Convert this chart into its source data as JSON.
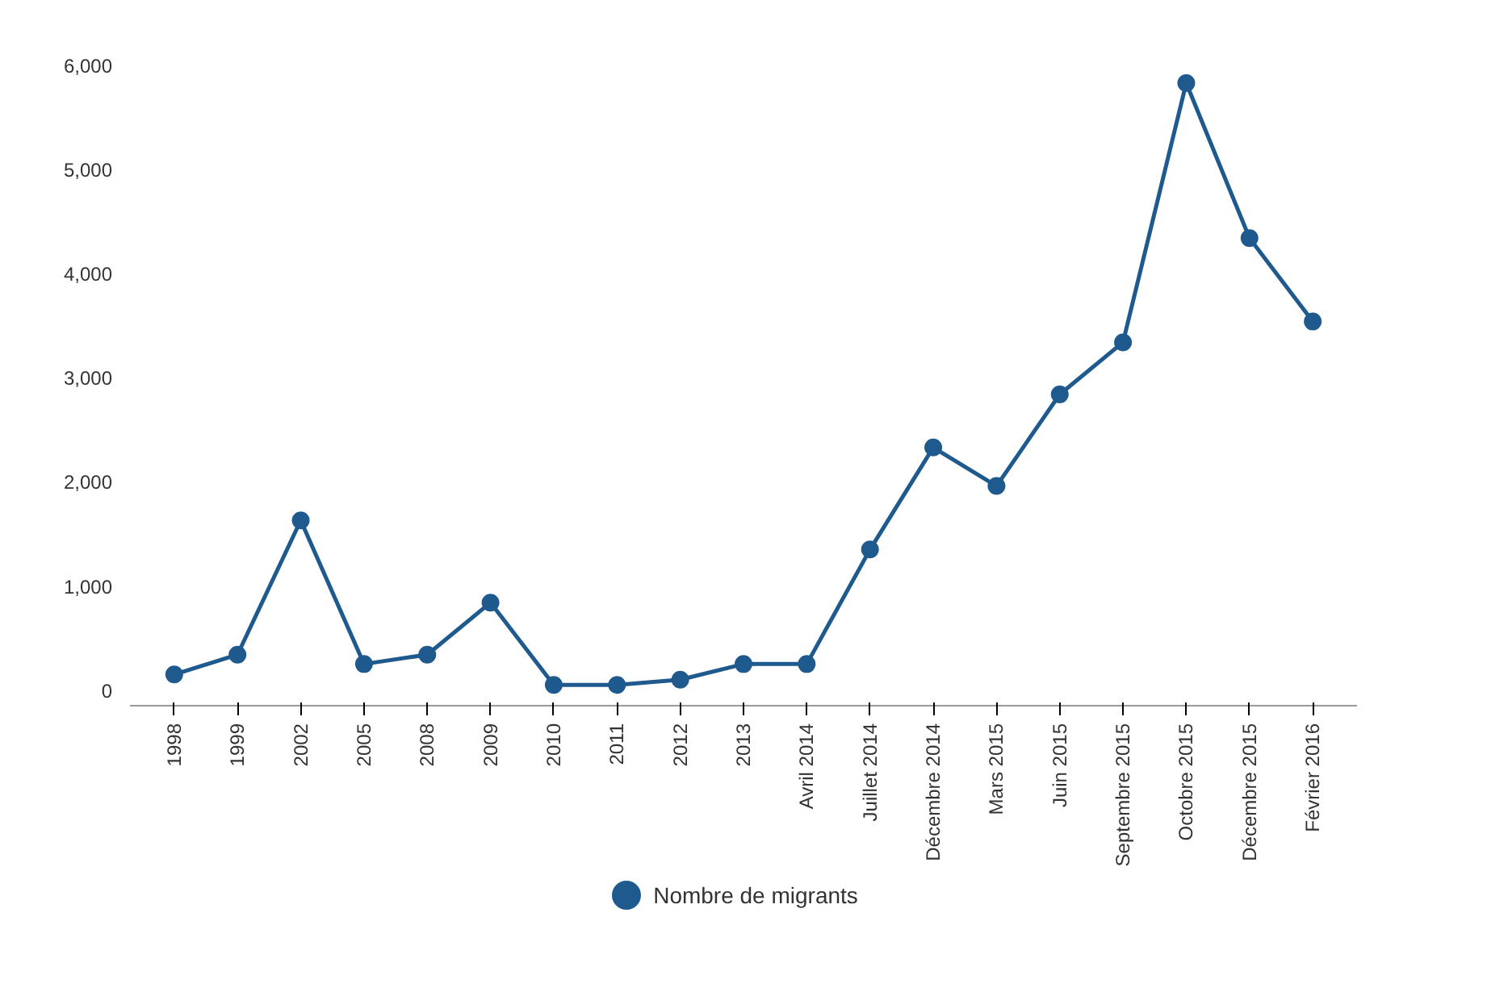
{
  "chart_data": {
    "type": "line",
    "categories": [
      "1998",
      "1999",
      "2002",
      "2005",
      "2008",
      "2009",
      "2010",
      "2011",
      "2012",
      "2013",
      "Avril 2014",
      "Juillet 2014",
      "Décembre 2014",
      "Mars 2015",
      "Juin 2015",
      "Septembre 2015",
      "Octobre 2015",
      "Décembre 2015",
      "Février 2016"
    ],
    "series": [
      {
        "name": "Nombre de migrants",
        "color": "#1f5a8e",
        "values": [
          150,
          340,
          1630,
          250,
          340,
          840,
          50,
          50,
          100,
          250,
          250,
          1350,
          2330,
          1960,
          2840,
          3340,
          5830,
          4340,
          3540
        ]
      }
    ],
    "ylim": [
      -150,
      6000
    ],
    "yticks": [
      0,
      {
        "value": 1000,
        "label": "1,000"
      },
      {
        "value": 2000,
        "label": "2,000"
      },
      {
        "value": 3000,
        "label": "3,000"
      },
      {
        "value": 4000,
        "label": "4,000"
      },
      {
        "value": 5000,
        "label": "5,000"
      },
      {
        "value": 6000,
        "label": "6,000"
      }
    ],
    "grid": false,
    "legend": "bottom",
    "marker": "circle",
    "line_style": "solid"
  }
}
